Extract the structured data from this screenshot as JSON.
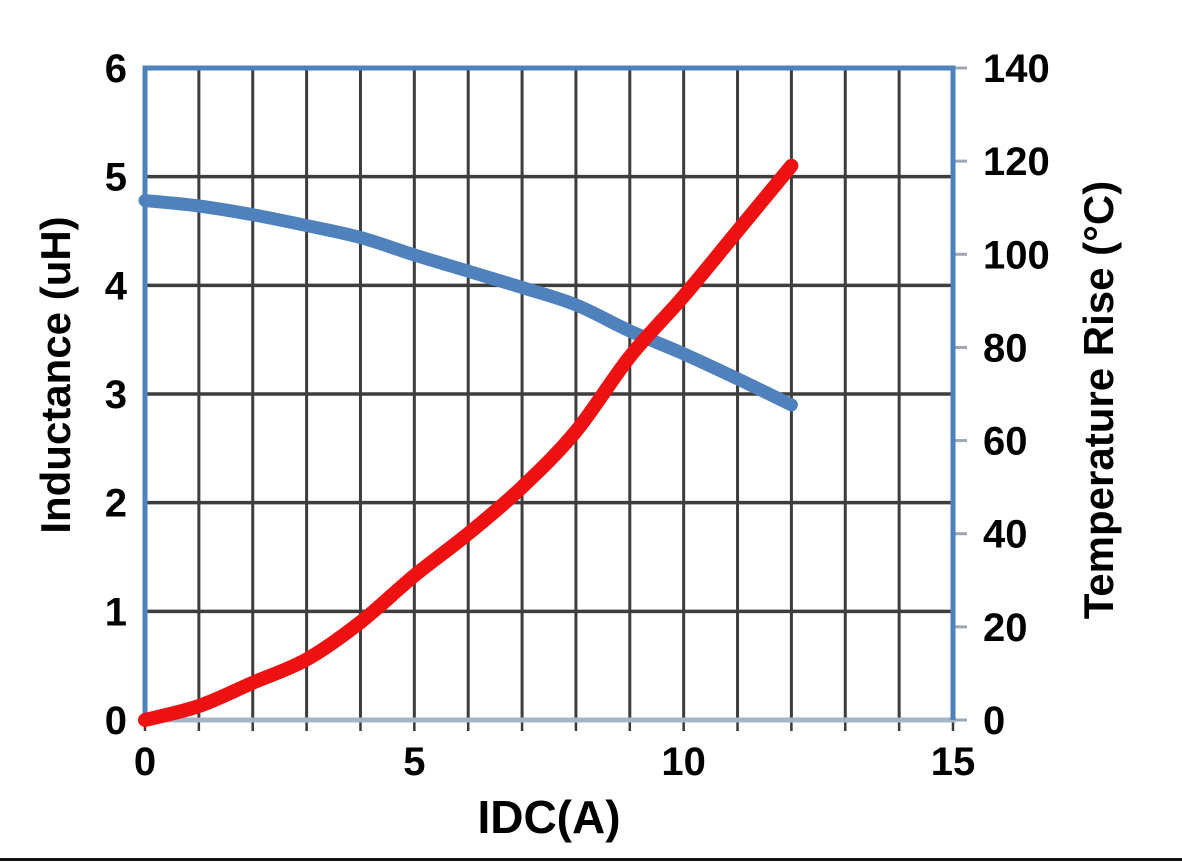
{
  "chart_data": {
    "type": "line",
    "title": "",
    "xlabel": "IDC(A)",
    "ylabel_left": "Inductance (uH)",
    "ylabel_right": "Temperature Rise (°C)",
    "x_range": [
      0,
      15
    ],
    "x_gridline_step": 1,
    "x_tick_labels": [
      "0",
      "5",
      "10",
      "15"
    ],
    "x_tick_values": [
      0,
      5,
      10,
      15
    ],
    "y_left_range": [
      0,
      6
    ],
    "y_left_gridline_step": 1,
    "y_left_tick_labels": [
      "6",
      "5",
      "4",
      "3",
      "2",
      "1",
      "0"
    ],
    "y_left_tick_values": [
      6,
      5,
      4,
      3,
      2,
      1,
      0
    ],
    "y_right_range": [
      0,
      140
    ],
    "y_right_tick_step": 20,
    "y_right_tick_labels": [
      "140",
      "120",
      "100",
      "80",
      "60",
      "40",
      "20",
      "0"
    ],
    "y_right_tick_values": [
      140,
      120,
      100,
      80,
      60,
      40,
      20,
      0
    ],
    "grid": true,
    "legend": "none",
    "series": [
      {
        "name": "Inductance",
        "axis": "left",
        "color": "#4f81bd",
        "x": [
          0,
          1,
          2,
          3,
          4,
          5,
          6,
          7,
          8,
          9,
          10,
          11,
          12
        ],
        "values": [
          4.78,
          4.73,
          4.65,
          4.55,
          4.44,
          4.28,
          4.13,
          3.98,
          3.82,
          3.58,
          3.37,
          3.14,
          2.9
        ]
      },
      {
        "name": "Temperature Rise",
        "axis": "right",
        "color": "#ed1111",
        "x": [
          0,
          1,
          2,
          3,
          4,
          5,
          6,
          7,
          8,
          9,
          10,
          11,
          12
        ],
        "values": [
          0,
          3,
          8,
          13,
          21,
          31,
          40,
          50,
          62,
          78,
          91,
          105,
          119
        ]
      }
    ]
  },
  "colors": {
    "plot_border": "#4f81bd",
    "gridline": "#3d3d3d",
    "bottom_axis_line": "#a6b4c7",
    "bottom_tick": "#3a3a3a",
    "right_tick": "#9aa7b5",
    "text": "#000000",
    "bottom_rule": "#111111",
    "background": "#ffffff"
  }
}
